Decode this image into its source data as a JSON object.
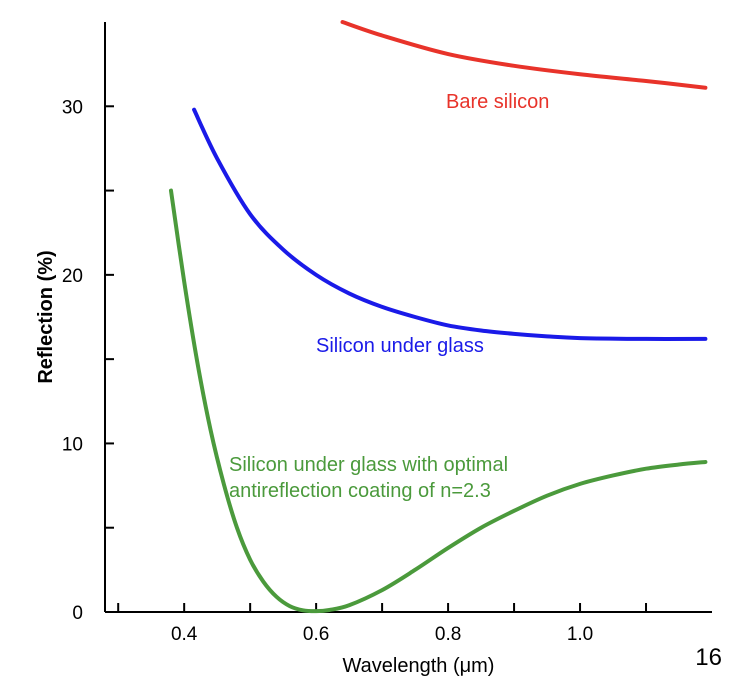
{
  "page_number": "16",
  "chart_data": {
    "type": "line",
    "xlabel": "Wavelength (μm)",
    "ylabel": "Reflection (%)",
    "xlim": [
      0.28,
      1.2
    ],
    "ylim": [
      0,
      35
    ],
    "x_ticks": [
      0.4,
      0.6,
      0.8,
      1.0
    ],
    "x_tick_labels": [
      "0.4",
      "0.6",
      "0.8",
      "1.0"
    ],
    "x_minor_ticks": [
      0.3,
      0.5,
      0.7,
      0.9,
      1.1
    ],
    "y_ticks": [
      0,
      10,
      20,
      30
    ],
    "y_tick_labels": [
      "0",
      "10",
      "20",
      "30"
    ],
    "y_minor_ticks": [
      5,
      15,
      25
    ],
    "grid": false,
    "series": [
      {
        "label": "Bare silicon",
        "color": "#e8332a",
        "points": [
          [
            0.64,
            35.0
          ],
          [
            0.7,
            34.2
          ],
          [
            0.8,
            33.1
          ],
          [
            0.9,
            32.4
          ],
          [
            1.0,
            31.9
          ],
          [
            1.1,
            31.5
          ],
          [
            1.19,
            31.1
          ]
        ]
      },
      {
        "label": "Silicon under glass",
        "color": "#1a1ae8",
        "points": [
          [
            0.415,
            29.8
          ],
          [
            0.45,
            26.9
          ],
          [
            0.5,
            23.6
          ],
          [
            0.55,
            21.5
          ],
          [
            0.6,
            20.0
          ],
          [
            0.65,
            18.9
          ],
          [
            0.7,
            18.1
          ],
          [
            0.75,
            17.5
          ],
          [
            0.8,
            17.0
          ],
          [
            0.85,
            16.7
          ],
          [
            0.9,
            16.5
          ],
          [
            0.95,
            16.35
          ],
          [
            1.0,
            16.25
          ],
          [
            1.1,
            16.2
          ],
          [
            1.19,
            16.2
          ]
        ]
      },
      {
        "label": "Silicon under glass with optimal antireflection coating of n=2.3",
        "label_lines": [
          "Silicon under glass with optimal",
          "antireflection coating of n=2.3"
        ],
        "color": "#4b9a3c",
        "points": [
          [
            0.38,
            25.0
          ],
          [
            0.4,
            19.6
          ],
          [
            0.42,
            14.8
          ],
          [
            0.44,
            10.8
          ],
          [
            0.46,
            7.6
          ],
          [
            0.48,
            5.0
          ],
          [
            0.5,
            3.1
          ],
          [
            0.52,
            1.8
          ],
          [
            0.54,
            0.9
          ],
          [
            0.56,
            0.35
          ],
          [
            0.58,
            0.1
          ],
          [
            0.6,
            0.05
          ],
          [
            0.62,
            0.12
          ],
          [
            0.65,
            0.4
          ],
          [
            0.7,
            1.3
          ],
          [
            0.75,
            2.5
          ],
          [
            0.8,
            3.8
          ],
          [
            0.85,
            5.0
          ],
          [
            0.9,
            6.0
          ],
          [
            0.95,
            6.9
          ],
          [
            1.0,
            7.6
          ],
          [
            1.05,
            8.1
          ],
          [
            1.1,
            8.5
          ],
          [
            1.15,
            8.75
          ],
          [
            1.19,
            8.9
          ]
        ]
      }
    ]
  }
}
